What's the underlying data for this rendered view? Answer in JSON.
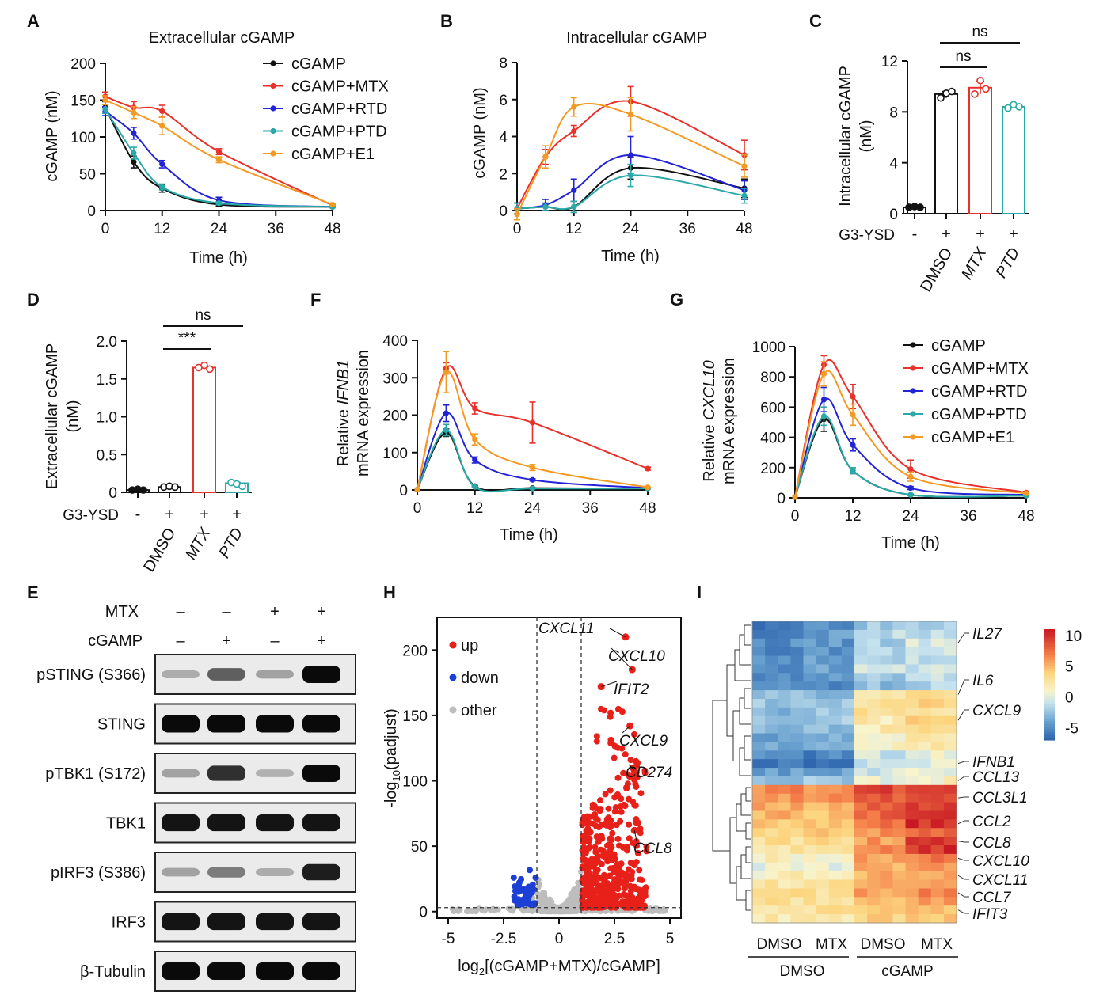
{
  "figure": {
    "colors": {
      "cGAMP": "#111111",
      "cGAMP+MTX": "#e8312b",
      "cGAMP+RTD": "#2323d6",
      "cGAMP+PTD": "#2aa9a9",
      "cGAMP+E1": "#f39a24"
    },
    "legend_entries": [
      "cGAMP",
      "cGAMP+MTX",
      "cGAMP+RTD",
      "cGAMP+PTD",
      "cGAMP+E1"
    ]
  },
  "chart_data": [
    {
      "panel": "A",
      "type": "line",
      "title": "Extracellular cGAMP",
      "xlabel": "Time (h)",
      "ylabel": "cGAMP (nM)",
      "xlim": [
        0,
        48
      ],
      "ylim": [
        0,
        200
      ],
      "xticks": [
        0,
        12,
        24,
        36,
        48
      ],
      "yticks": [
        0,
        50,
        100,
        150,
        200
      ],
      "legend": "top-right",
      "series": [
        {
          "name": "cGAMP",
          "x": [
            0,
            6,
            12,
            24,
            48
          ],
          "y": [
            140,
            66,
            30,
            8,
            5
          ],
          "err": [
            8,
            8,
            5,
            2,
            1
          ]
        },
        {
          "name": "cGAMP+MTX",
          "x": [
            0,
            6,
            12,
            24,
            48
          ],
          "y": [
            155,
            140,
            135,
            80,
            7
          ],
          "err": [
            6,
            8,
            8,
            4,
            1
          ]
        },
        {
          "name": "cGAMP+RTD",
          "x": [
            0,
            6,
            12,
            24,
            48
          ],
          "y": [
            135,
            105,
            63,
            14,
            5
          ],
          "err": [
            6,
            8,
            5,
            4,
            1
          ]
        },
        {
          "name": "cGAMP+PTD",
          "x": [
            0,
            6,
            12,
            24,
            48
          ],
          "y": [
            138,
            78,
            32,
            10,
            5
          ],
          "err": [
            6,
            8,
            4,
            2,
            1
          ]
        },
        {
          "name": "cGAMP+E1",
          "x": [
            0,
            6,
            12,
            24,
            48
          ],
          "y": [
            150,
            133,
            115,
            69,
            8
          ],
          "err": [
            6,
            8,
            12,
            4,
            1
          ]
        }
      ]
    },
    {
      "panel": "B",
      "type": "line",
      "title": "Intracellular cGAMP",
      "xlabel": "Time (h)",
      "ylabel": "cGAMP (nM)",
      "xlim": [
        0,
        48
      ],
      "ylim": [
        0,
        8
      ],
      "xticks": [
        0,
        12,
        24,
        36,
        48
      ],
      "yticks": [
        0,
        2,
        4,
        6,
        8
      ],
      "series": [
        {
          "name": "cGAMP",
          "x": [
            0,
            6,
            12,
            24,
            48
          ],
          "y": [
            0.1,
            0.2,
            0.2,
            2.3,
            1.2
          ],
          "err": [
            0.3,
            0.2,
            0.3,
            0.6,
            0.5
          ]
        },
        {
          "name": "cGAMP+MTX",
          "x": [
            0,
            6,
            12,
            24,
            48
          ],
          "y": [
            0.1,
            2.9,
            4.3,
            5.9,
            3.0
          ],
          "err": [
            0.3,
            0.4,
            0.3,
            0.8,
            0.8
          ]
        },
        {
          "name": "cGAMP+RTD",
          "x": [
            0,
            6,
            12,
            24,
            48
          ],
          "y": [
            0.1,
            0.3,
            1.1,
            3.0,
            1.1
          ],
          "err": [
            0.3,
            0.3,
            0.6,
            1.0,
            0.5
          ]
        },
        {
          "name": "cGAMP+PTD",
          "x": [
            0,
            6,
            12,
            24,
            48
          ],
          "y": [
            0.1,
            0.2,
            0.2,
            1.9,
            0.8
          ],
          "err": [
            0.3,
            0.2,
            0.3,
            0.6,
            0.4
          ]
        },
        {
          "name": "cGAMP+E1",
          "x": [
            0,
            6,
            12,
            24,
            48
          ],
          "y": [
            -0.2,
            2.9,
            5.6,
            5.2,
            2.4
          ],
          "err": [
            0.3,
            0.6,
            0.5,
            0.9,
            0.6
          ]
        }
      ]
    },
    {
      "panel": "C",
      "type": "bar",
      "ylabel_line1": "Intracellular cGAMP",
      "ylabel_line2": "(nM)",
      "ylim": [
        0,
        12
      ],
      "yticks": [
        0,
        4,
        8,
        12
      ],
      "row_label": "G3-YSD",
      "g3ysd": [
        "-",
        "+",
        "+",
        "+"
      ],
      "categories": [
        "",
        "DMSO",
        "MTX",
        "PTD"
      ],
      "values": [
        0.5,
        9.4,
        9.9,
        8.4
      ],
      "points": [
        [
          0.5,
          0.5,
          0.5
        ],
        [
          9.1,
          9.4,
          9.6
        ],
        [
          9.4,
          10.4,
          9.8
        ],
        [
          8.3,
          8.5,
          8.4
        ]
      ],
      "series_colors": [
        "#111111",
        "#111111",
        "#e8312b",
        "#2aa9a9"
      ],
      "sig": [
        {
          "label": "ns",
          "from": 1,
          "to": 2,
          "level": 1
        },
        {
          "label": "ns",
          "from": 1,
          "to": 3,
          "level": 2
        }
      ]
    },
    {
      "panel": "D",
      "type": "bar",
      "ylabel_line1": "Extracellular cGAMP",
      "ylabel_line2": "(nM)",
      "ylim": [
        0,
        2.0
      ],
      "yticks": [
        "0",
        "0.5",
        "1.0",
        "1.5",
        "2.0"
      ],
      "row_label": "G3-YSD",
      "g3ysd": [
        "-",
        "+",
        "+",
        "+"
      ],
      "categories": [
        "",
        "DMSO",
        "MTX",
        "PTD"
      ],
      "values": [
        0.03,
        0.07,
        1.65,
        0.12
      ],
      "points": [
        [
          0.03,
          0.03,
          0.03
        ],
        [
          0.07,
          0.07,
          0.07
        ],
        [
          1.65,
          1.67,
          1.63
        ],
        [
          0.13,
          0.1,
          0.08
        ]
      ],
      "series_colors": [
        "#111111",
        "#111111",
        "#e8312b",
        "#2aa9a9"
      ],
      "sig": [
        {
          "label": "***",
          "from": 1,
          "to": 2,
          "level": 1
        },
        {
          "label": "ns",
          "from": 1,
          "to": 3,
          "level": 2
        }
      ]
    },
    {
      "panel": "F",
      "type": "line",
      "xlabel": "Time (h)",
      "ylabel_line1_prefix": "Relative ",
      "ylabel_gene": "IFNB1",
      "ylabel_line2": "mRNA expression",
      "xlim": [
        0,
        48
      ],
      "ylim": [
        0,
        400
      ],
      "xticks": [
        0,
        12,
        24,
        36,
        48
      ],
      "yticks": [
        0,
        100,
        200,
        300,
        400
      ],
      "series": [
        {
          "name": "cGAMP",
          "x": [
            0,
            6,
            12,
            24,
            48
          ],
          "y": [
            1,
            153,
            10,
            5,
            4
          ],
          "err": [
            0,
            10,
            2,
            1,
            1
          ]
        },
        {
          "name": "cGAMP+MTX",
          "x": [
            0,
            6,
            12,
            24,
            48
          ],
          "y": [
            1,
            325,
            218,
            180,
            57
          ],
          "err": [
            0,
            15,
            15,
            55,
            4
          ]
        },
        {
          "name": "cGAMP+RTD",
          "x": [
            0,
            6,
            12,
            24,
            48
          ],
          "y": [
            1,
            205,
            80,
            27,
            5
          ],
          "err": [
            0,
            22,
            8,
            3,
            1
          ]
        },
        {
          "name": "cGAMP+PTD",
          "x": [
            0,
            6,
            12,
            24,
            48
          ],
          "y": [
            1,
            160,
            8,
            4,
            4
          ],
          "err": [
            0,
            15,
            2,
            1,
            1
          ]
        },
        {
          "name": "cGAMP+E1",
          "x": [
            0,
            6,
            12,
            24,
            48
          ],
          "y": [
            1,
            315,
            135,
            60,
            7
          ],
          "err": [
            0,
            55,
            15,
            8,
            1
          ]
        }
      ]
    },
    {
      "panel": "G",
      "type": "line",
      "xlabel": "Time (h)",
      "ylabel_line1_prefix": "Relative ",
      "ylabel_gene": "CXCL10",
      "ylabel_line2": "mRNA expression",
      "xlim": [
        0,
        48
      ],
      "ylim": [
        0,
        1000
      ],
      "xticks": [
        0,
        12,
        24,
        36,
        48
      ],
      "yticks": [
        0,
        200,
        400,
        600,
        800,
        1000
      ],
      "legend": "top-right",
      "series": [
        {
          "name": "cGAMP",
          "x": [
            0,
            6,
            12,
            24,
            48
          ],
          "y": [
            5,
            520,
            180,
            20,
            15
          ],
          "err": [
            0,
            80,
            20,
            5,
            3
          ]
        },
        {
          "name": "cGAMP+MTX",
          "x": [
            0,
            6,
            12,
            24,
            48
          ],
          "y": [
            5,
            880,
            670,
            190,
            35
          ],
          "err": [
            0,
            60,
            80,
            60,
            8
          ]
        },
        {
          "name": "cGAMP+RTD",
          "x": [
            0,
            6,
            12,
            24,
            48
          ],
          "y": [
            5,
            650,
            350,
            65,
            20
          ],
          "err": [
            0,
            80,
            40,
            10,
            4
          ]
        },
        {
          "name": "cGAMP+PTD",
          "x": [
            0,
            6,
            12,
            24,
            48
          ],
          "y": [
            5,
            540,
            180,
            20,
            15
          ],
          "err": [
            0,
            60,
            20,
            5,
            3
          ]
        },
        {
          "name": "cGAMP+E1",
          "x": [
            0,
            6,
            12,
            24,
            48
          ],
          "y": [
            5,
            820,
            550,
            140,
            30
          ],
          "err": [
            0,
            80,
            70,
            30,
            6
          ]
        }
      ]
    },
    {
      "panel": "H",
      "type": "scatter",
      "subtype": "volcano",
      "xlabel_prefix": "log",
      "xlabel_sub": "2",
      "xlabel_body": "[(cGAMP+MTX)/cGAMP]",
      "ylabel_prefix": "-log",
      "ylabel_sub": "10",
      "ylabel_body": "(padjust)",
      "xlim": [
        -5.5,
        5.5
      ],
      "ylim": [
        -5,
        225
      ],
      "xticks": [
        -5,
        -2.5,
        0,
        2.5,
        5
      ],
      "yticks": [
        0,
        50,
        100,
        150,
        200
      ],
      "xtick_labels": [
        "-5",
        "-2.5",
        "0",
        "2.5",
        "5"
      ],
      "thresholds": {
        "x": [
          -1,
          1
        ],
        "y": 3
      },
      "legend": [
        "up",
        "down",
        "other"
      ],
      "legend_colors": [
        "#e8201a",
        "#1c3fd6",
        "#bdbdbd"
      ],
      "labels": [
        {
          "gene": "CXCL11",
          "x": 3.0,
          "y": 210
        },
        {
          "gene": "CXCL10",
          "x": 3.3,
          "y": 185
        },
        {
          "gene": "IFIT2",
          "x": 1.9,
          "y": 172
        },
        {
          "gene": "CXCL9",
          "x": 3.2,
          "y": 142
        },
        {
          "gene": "CD274",
          "x": 3.4,
          "y": 108
        },
        {
          "gene": "CCL8",
          "x": 3.4,
          "y": 62
        }
      ]
    },
    {
      "panel": "I",
      "type": "heatmap",
      "colorbar_ticks": [
        "10",
        "5",
        "0",
        "-5"
      ],
      "colorbar_range": [
        -7,
        11
      ],
      "col_labels": [
        "DMSO",
        "MTX",
        "DMSO",
        "MTX"
      ],
      "group_labels": [
        "DMSO",
        "cGAMP"
      ],
      "row_labels": [
        {
          "gene": "IL27",
          "row": 2
        },
        {
          "gene": "IL6",
          "row": 8
        },
        {
          "gene": "CXCL9",
          "row": 11
        },
        {
          "gene": "IFNB1",
          "row": 16
        },
        {
          "gene": "CCL13",
          "row": 18
        },
        {
          "gene": "CCL3L1",
          "row": 20
        },
        {
          "gene": "CCL2",
          "row": 23
        },
        {
          "gene": "CCL8",
          "row": 25
        },
        {
          "gene": "CXCL10",
          "row": 27
        },
        {
          "gene": "CXCL11",
          "row": 29
        },
        {
          "gene": "CCL7",
          "row": 31
        },
        {
          "gene": "IFIT3",
          "row": 33
        }
      ],
      "row_means": [
        [
          -5.5,
          -4.5,
          -2,
          -1.5
        ],
        [
          -5,
          -4,
          -1.5,
          -1
        ],
        [
          -5,
          -4.5,
          -2,
          -0.5
        ],
        [
          -5.5,
          -4.5,
          -1.5,
          -1
        ],
        [
          -5,
          -4,
          -2,
          -1
        ],
        [
          -4.5,
          -4,
          -1,
          -0.5
        ],
        [
          -5,
          -4.5,
          -2,
          -1
        ],
        [
          -5,
          -5,
          -2.5,
          -1.5
        ],
        [
          -3,
          -2.5,
          2,
          3
        ],
        [
          -2.5,
          -2.5,
          2.5,
          3.5
        ],
        [
          -3,
          -2,
          3,
          3
        ],
        [
          -2.5,
          -2,
          2,
          4
        ],
        [
          -3,
          -3,
          2,
          3
        ],
        [
          -4,
          -3,
          1.5,
          2.5
        ],
        [
          -3,
          -3.5,
          1,
          2
        ],
        [
          -4.5,
          -5.5,
          -0.5,
          0.5
        ],
        [
          -5.5,
          -6,
          -1,
          0
        ],
        [
          -4,
          -4,
          -0.5,
          0.5
        ],
        [
          -3,
          -2.5,
          0.5,
          1.5
        ],
        [
          6.5,
          6.5,
          9,
          9.5
        ],
        [
          6,
          6,
          8.5,
          9.5
        ],
        [
          5.5,
          5.5,
          8,
          9
        ],
        [
          5,
          5,
          8,
          9.5
        ],
        [
          4.5,
          5,
          7.5,
          10
        ],
        [
          4,
          4.5,
          6.5,
          8
        ],
        [
          3,
          3.5,
          6,
          10
        ],
        [
          2.5,
          3,
          6.5,
          10
        ],
        [
          1.5,
          1.5,
          6,
          7
        ],
        [
          0.5,
          0.5,
          5,
          6
        ],
        [
          1.5,
          1.5,
          5.5,
          6
        ],
        [
          2.5,
          3,
          6,
          6.5
        ],
        [
          3,
          3,
          5.5,
          6.5
        ],
        [
          3,
          3,
          5,
          5.5
        ],
        [
          2.5,
          3,
          4.5,
          5
        ],
        [
          2,
          2.5,
          4,
          4.5
        ]
      ]
    }
  ],
  "western": {
    "panel": "E",
    "mtx_label": "MTX",
    "cgamp_label": "cGAMP",
    "mtx_signs": [
      "–",
      "–",
      "+",
      "+"
    ],
    "cgamp_signs": [
      "–",
      "+",
      "–",
      "+"
    ],
    "rows": [
      {
        "label": "pSTING (S366)",
        "intensity": [
          0.15,
          0.55,
          0.2,
          1.0
        ]
      },
      {
        "label": "STING",
        "intensity": [
          1.0,
          1.0,
          1.0,
          1.0
        ]
      },
      {
        "label": "pTBK1 (S172)",
        "intensity": [
          0.2,
          0.8,
          0.12,
          1.0
        ]
      },
      {
        "label": "TBK1",
        "intensity": [
          0.95,
          0.95,
          0.95,
          0.95
        ]
      },
      {
        "label": "pIRF3 (S386)",
        "intensity": [
          0.2,
          0.4,
          0.15,
          0.9
        ]
      },
      {
        "label": "IRF3",
        "intensity": [
          0.95,
          0.95,
          0.95,
          0.95
        ]
      },
      {
        "label": "β-Tubulin",
        "intensity": [
          1.0,
          1.0,
          1.0,
          1.0
        ]
      }
    ]
  },
  "panel_letters": [
    "A",
    "B",
    "C",
    "D",
    "F",
    "G",
    "E",
    "H",
    "I"
  ]
}
